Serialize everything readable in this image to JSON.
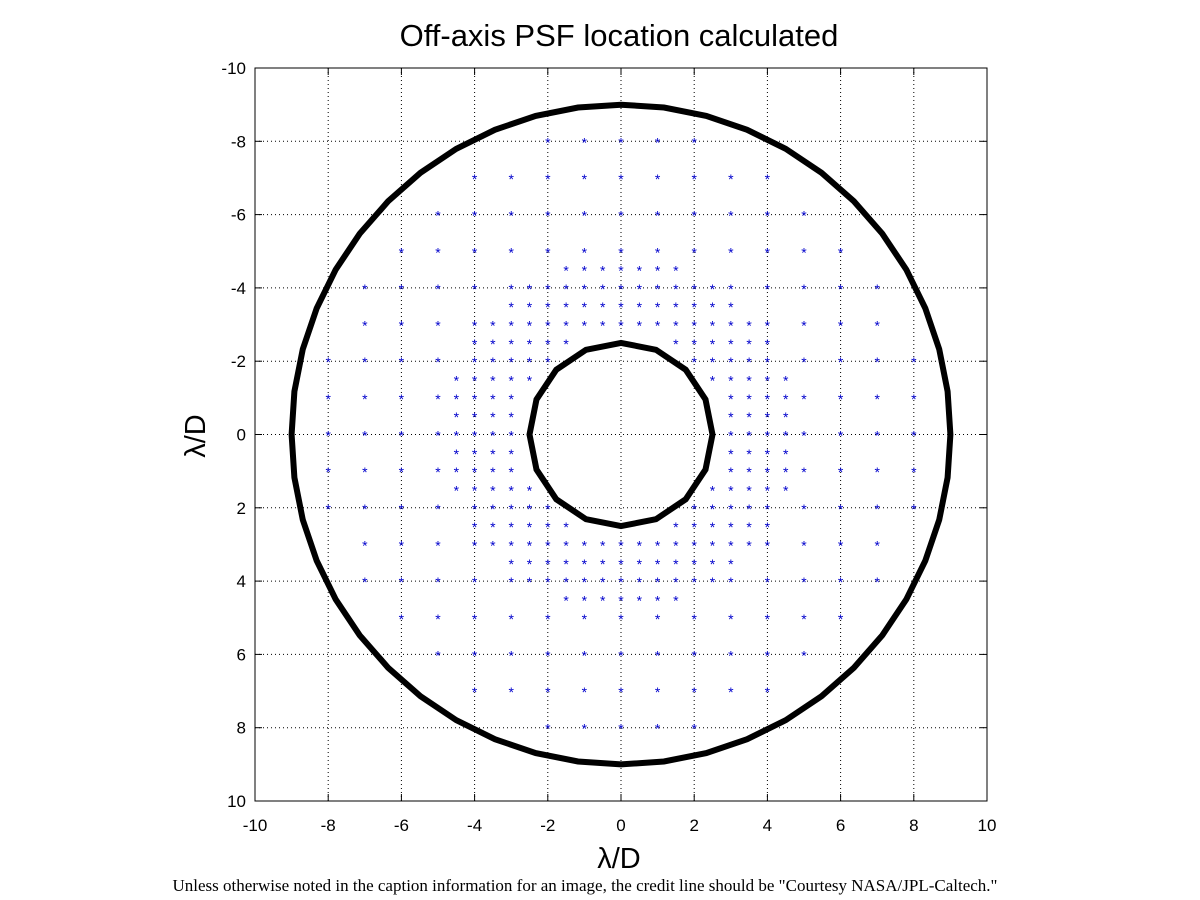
{
  "chart_data": {
    "type": "scatter",
    "title": "Off-axis PSF location calculated",
    "xlabel": "λ/D",
    "ylabel": "λ/D",
    "xlim": [
      -10,
      10
    ],
    "ylim": [
      -10,
      10
    ],
    "y_axis_direction": "reversed",
    "grid": true,
    "grid_style": "dotted",
    "xticks": [
      -10,
      -8,
      -6,
      -4,
      -2,
      0,
      2,
      4,
      6,
      8,
      10
    ],
    "yticks": [
      -10,
      -8,
      -6,
      -4,
      -2,
      0,
      2,
      4,
      6,
      8,
      10
    ],
    "point_marker": "*",
    "point_color": "#0000cc",
    "ring_color": "#000000",
    "inner_ring_radius": 2.5,
    "outer_ring_radius": 9,
    "point_grids": [
      {
        "region": "inner",
        "step": 0.5,
        "x_from": -4.5,
        "x_to": 4.5,
        "y_from": -4.5,
        "y_to": 4.5
      },
      {
        "region": "outer",
        "step": 1,
        "x_from": -8,
        "x_to": 8,
        "y_from": -8,
        "y_to": 8
      }
    ]
  },
  "credit_line": "Unless otherwise noted in the caption information for an image, the credit line should be \"Courtesy NASA/JPL-Caltech.\""
}
